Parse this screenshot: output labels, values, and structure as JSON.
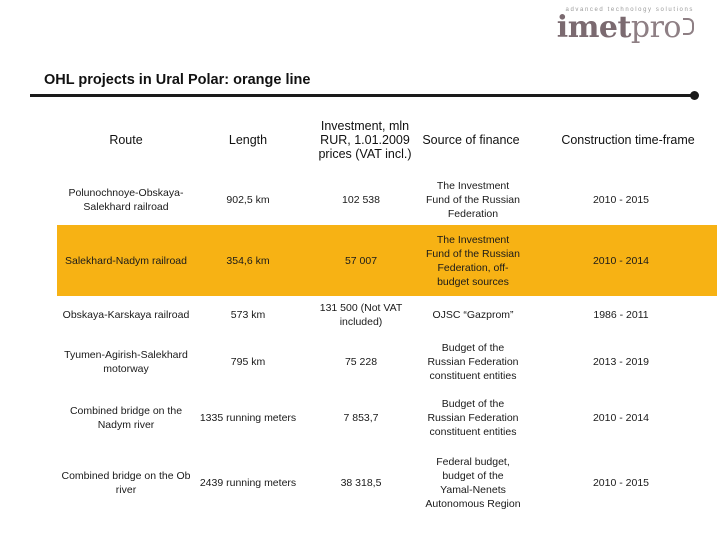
{
  "logo": {
    "tagline": "advanced technology solutions",
    "word_a": "imet",
    "word_b": "pro"
  },
  "title": "OHL projects in Ural Polar: orange line",
  "table": {
    "headers": [
      "Route",
      "Length",
      "Investment, mln RUR, 1.01.2009 prices (VAT incl.)",
      "Source of finance",
      "Construction time-frame"
    ],
    "rows": [
      {
        "route": "Polunochnoye-Obskaya-Salekhard railroad",
        "length": "902,5 km",
        "investment": "102 538",
        "source": "The Investment Fund of the Russian Federation",
        "timeframe": "2010 - 2015",
        "highlight": false
      },
      {
        "route": "Salekhard-Nadym railroad",
        "length": "354,6 km",
        "investment": "57 007",
        "source": "The Investment Fund of the Russian Federation, off-budget sources",
        "timeframe": "2010 - 2014",
        "highlight": true
      },
      {
        "route": "Obskaya-Karskaya railroad",
        "length": "573 km",
        "investment": "131 500 (Not VAT included)",
        "source": "OJSC “Gazprom”",
        "timeframe": "1986 - 2011",
        "highlight": false
      },
      {
        "route": "Tyumen-Agirish-Salekhard motorway",
        "length": "795 km",
        "investment": "75 228",
        "source": "Budget of the Russian Federation constituent entities",
        "timeframe": "2013 - 2019",
        "highlight": false
      },
      {
        "route": "Combined bridge on the Nadym river",
        "length": "1335 running meters",
        "investment": "7 853,7",
        "source": "Budget of the Russian Federation constituent entities",
        "timeframe": "2010 - 2014",
        "highlight": false
      },
      {
        "route": "Combined bridge on the Ob river",
        "length": "2439 running meters",
        "investment": "38 318,5",
        "source": "Federal budget, budget of the Yamal-Nenets Autonomous Region",
        "timeframe": "2010 - 2015",
        "highlight": false
      }
    ]
  }
}
